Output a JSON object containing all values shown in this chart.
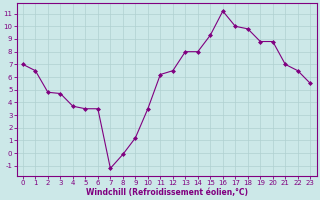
{
  "x": [
    0,
    1,
    2,
    3,
    4,
    5,
    6,
    7,
    8,
    9,
    10,
    11,
    12,
    13,
    14,
    15,
    16,
    17,
    18,
    19,
    20,
    21,
    22,
    23
  ],
  "y": [
    7.0,
    6.5,
    4.8,
    4.7,
    3.7,
    3.5,
    3.5,
    -1.2,
    -0.1,
    1.2,
    3.5,
    6.2,
    6.5,
    8.0,
    8.0,
    9.3,
    11.2,
    10.0,
    9.8,
    8.8,
    8.8,
    7.0,
    6.5,
    5.5
  ],
  "line_color": "#800080",
  "marker": "D",
  "marker_size": 2,
  "bg_color": "#cce8e8",
  "grid_color": "#b0d0d0",
  "xlabel": "Windchill (Refroidissement éolien,°C)",
  "ylabel_ticks": [
    -1,
    0,
    1,
    2,
    3,
    4,
    5,
    6,
    7,
    8,
    9,
    10,
    11
  ],
  "xlim": [
    -0.5,
    23.5
  ],
  "ylim": [
    -1.8,
    11.8
  ],
  "xticks": [
    0,
    1,
    2,
    3,
    4,
    5,
    6,
    7,
    8,
    9,
    10,
    11,
    12,
    13,
    14,
    15,
    16,
    17,
    18,
    19,
    20,
    21,
    22,
    23
  ],
  "axis_color": "#800080",
  "tick_color": "#800080",
  "tick_fontsize": 5.0,
  "xlabel_fontsize": 5.5
}
